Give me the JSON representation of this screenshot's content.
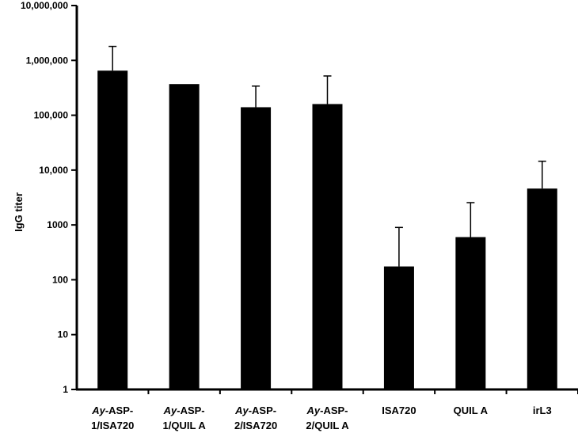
{
  "chart_data": {
    "type": "bar",
    "ylabel": "IgG titer",
    "xlabel": "",
    "yscale": "log",
    "ylim": [
      1,
      10000000
    ],
    "yticks": [
      "1",
      "10",
      "100",
      "1000",
      "10,000",
      "100,000",
      "1,000,000",
      "10,000,000"
    ],
    "categories": [
      {
        "line1_prefix": "Ay",
        "line1_suffix": "-ASP-",
        "line2": "1/ISA720"
      },
      {
        "line1_prefix": "Ay",
        "line1_suffix": "-ASP-",
        "line2": "1/QUIL A"
      },
      {
        "line1_prefix": "Ay",
        "line1_suffix": "-ASP-",
        "line2": "2/ISA720"
      },
      {
        "line1_prefix": "Ay",
        "line1_suffix": "-ASP-",
        "line2": "2/QUIL A"
      },
      {
        "line1_prefix": "",
        "line1_suffix": "ISA720",
        "line2": ""
      },
      {
        "line1_prefix": "",
        "line1_suffix": "QUIL A",
        "line2": ""
      },
      {
        "line1_prefix": "",
        "line1_suffix": "irL3",
        "line2": ""
      }
    ],
    "values": [
      650000,
      370000,
      140000,
      160000,
      175,
      600,
      4600
    ],
    "error_upper": [
      1800000,
      370000,
      340000,
      520000,
      900,
      2550,
      14500
    ],
    "bar_color": "#000000",
    "grid": false,
    "legend": "none"
  }
}
